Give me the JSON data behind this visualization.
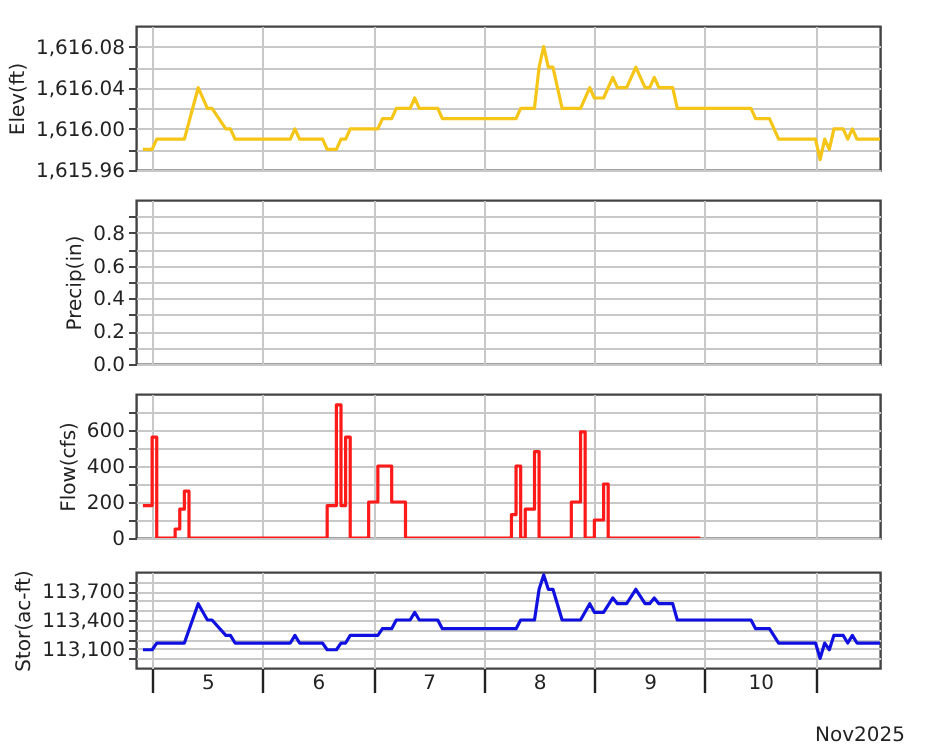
{
  "chart_data": [
    {
      "type": "line",
      "ylabel": "Elev(ft)",
      "grid": true,
      "tick_labels": "y",
      "x": [
        "2025-11-04T22:00",
        "2025-11-05T00:00",
        "2025-11-05T01:00",
        "2025-11-05T07:00",
        "2025-11-05T10:00",
        "2025-11-05T12:00",
        "2025-11-05T13:00",
        "2025-11-05T16:00",
        "2025-11-05T17:00",
        "2025-11-05T18:00",
        "2025-11-06T06:00",
        "2025-11-06T07:00",
        "2025-11-06T08:00",
        "2025-11-06T13:00",
        "2025-11-06T14:00",
        "2025-11-06T16:00",
        "2025-11-06T17:00",
        "2025-11-06T18:00",
        "2025-11-06T19:00",
        "2025-11-07T01:00",
        "2025-11-07T02:00",
        "2025-11-07T04:00",
        "2025-11-07T05:00",
        "2025-11-07T08:00",
        "2025-11-07T09:00",
        "2025-11-07T10:00",
        "2025-11-07T14:00",
        "2025-11-07T15:00",
        "2025-11-08T07:00",
        "2025-11-08T08:00",
        "2025-11-08T11:00",
        "2025-11-08T12:00",
        "2025-11-08T13:00",
        "2025-11-08T14:00",
        "2025-11-08T15:00",
        "2025-11-08T17:00",
        "2025-11-08T21:00",
        "2025-11-08T23:00",
        "2025-11-09T00:00",
        "2025-11-09T02:00",
        "2025-11-09T04:00",
        "2025-11-09T05:00",
        "2025-11-09T07:00",
        "2025-11-09T09:00",
        "2025-11-09T11:00",
        "2025-11-09T12:00",
        "2025-11-09T13:00",
        "2025-11-09T14:00",
        "2025-11-09T17:00",
        "2025-11-09T18:00",
        "2025-11-10T10:00",
        "2025-11-10T11:00",
        "2025-11-10T14:00",
        "2025-11-10T16:00",
        "2025-11-11T00:00",
        "2025-11-11T01:00",
        "2025-11-11T02:00",
        "2025-11-11T03:00",
        "2025-11-11T04:00",
        "2025-11-11T06:00",
        "2025-11-11T07:00",
        "2025-11-11T08:00",
        "2025-11-11T09:00",
        "2025-11-11T14:00"
      ],
      "series": [
        {
          "color": "#f5c518",
          "values": [
            1615.98,
            1615.98,
            1615.99,
            1615.99,
            1616.04,
            1616.02,
            1616.02,
            1616.0,
            1616.0,
            1615.99,
            1615.99,
            1616.0,
            1615.99,
            1615.99,
            1615.98,
            1615.98,
            1615.99,
            1615.99,
            1616.0,
            1616.0,
            1616.01,
            1616.01,
            1616.02,
            1616.02,
            1616.03,
            1616.02,
            1616.02,
            1616.01,
            1616.01,
            1616.02,
            1616.02,
            1616.06,
            1616.08,
            1616.06,
            1616.06,
            1616.02,
            1616.02,
            1616.04,
            1616.03,
            1616.03,
            1616.05,
            1616.04,
            1616.04,
            1616.06,
            1616.04,
            1616.04,
            1616.05,
            1616.04,
            1616.04,
            1616.02,
            1616.02,
            1616.01,
            1616.01,
            1615.99,
            1615.99,
            1615.97,
            1615.99,
            1615.98,
            1616.0,
            1616.0,
            1615.99,
            1616.0,
            1615.99,
            1615.99
          ]
        }
      ],
      "xlim": [
        "2025-11-04T20:30",
        "2025-11-11T14:00"
      ],
      "xticks": [
        {
          "value": "2025-11-05",
          "label": null
        },
        {
          "value": "2025-11-06",
          "label": null
        },
        {
          "value": "2025-11-07",
          "label": null
        },
        {
          "value": "2025-11-08",
          "label": null
        },
        {
          "value": "2025-11-09",
          "label": null
        },
        {
          "value": "2025-11-10",
          "label": null
        },
        {
          "value": "2025-11-11",
          "label": null
        }
      ],
      "ylim": [
        1615.96,
        1616.1
      ],
      "yticks": [
        {
          "value": 1615.96,
          "label": "1,615.96"
        },
        {
          "value": 1615.98,
          "label": null
        },
        {
          "value": 1616.0,
          "label": "1,616.00"
        },
        {
          "value": 1616.02,
          "label": null
        },
        {
          "value": 1616.04,
          "label": "1,616.04"
        },
        {
          "value": 1616.06,
          "label": null
        },
        {
          "value": 1616.08,
          "label": "1,616.08"
        }
      ]
    },
    {
      "type": "line",
      "ylabel": "Precip(in)",
      "grid": true,
      "tick_labels": "y",
      "xlim": [
        "2025-11-04T20:30",
        "2025-11-11T14:00"
      ],
      "xticks": [
        {
          "value": "2025-11-05",
          "label": null
        },
        {
          "value": "2025-11-06",
          "label": null
        },
        {
          "value": "2025-11-07",
          "label": null
        },
        {
          "value": "2025-11-08",
          "label": null
        },
        {
          "value": "2025-11-09",
          "label": null
        },
        {
          "value": "2025-11-10",
          "label": null
        },
        {
          "value": "2025-11-11",
          "label": null
        }
      ],
      "ylim": [
        0,
        1
      ],
      "yticks": [
        {
          "value": 0,
          "label": "0.0"
        },
        {
          "value": 0.1,
          "label": null
        },
        {
          "value": 0.2,
          "label": "0.2"
        },
        {
          "value": 0.3,
          "label": null
        },
        {
          "value": 0.4,
          "label": "0.4"
        },
        {
          "value": 0.5,
          "label": null
        },
        {
          "value": 0.6,
          "label": "0.6"
        },
        {
          "value": 0.7,
          "label": null
        },
        {
          "value": 0.8,
          "label": "0.8"
        },
        {
          "value": 0.9,
          "label": null
        }
      ]
    },
    {
      "type": "step",
      "ylabel": "Flow(cfs)",
      "grid": true,
      "tick_labels": "y",
      "x": [
        "2025-11-04T22:00",
        "2025-11-05T00:00",
        "2025-11-05T01:00",
        "2025-11-05T05:00",
        "2025-11-05T06:00",
        "2025-11-05T07:00",
        "2025-11-05T08:00",
        "2025-11-06T14:00",
        "2025-11-06T16:00",
        "2025-11-06T17:00",
        "2025-11-06T18:00",
        "2025-11-06T19:00",
        "2025-11-06T23:00",
        "2025-11-07T01:00",
        "2025-11-07T04:00",
        "2025-11-07T07:00",
        "2025-11-08T06:00",
        "2025-11-08T07:00",
        "2025-11-08T08:00",
        "2025-11-08T09:00",
        "2025-11-08T11:00",
        "2025-11-08T12:00",
        "2025-11-08T19:00",
        "2025-11-08T21:00",
        "2025-11-08T22:00",
        "2025-11-09T00:00",
        "2025-11-09T02:00",
        "2025-11-09T03:00",
        "2025-11-09T23:00"
      ],
      "series": [
        {
          "color": "#ff1a1a",
          "values": [
            180,
            560,
            0,
            50,
            160,
            260,
            0,
            180,
            740,
            180,
            560,
            0,
            200,
            400,
            200,
            0,
            130,
            400,
            0,
            160,
            480,
            0,
            200,
            590,
            0,
            100,
            300,
            0,
            0
          ]
        }
      ],
      "xlim": [
        "2025-11-04T20:30",
        "2025-11-11T14:00"
      ],
      "xticks": [
        {
          "value": "2025-11-05",
          "label": null
        },
        {
          "value": "2025-11-06",
          "label": null
        },
        {
          "value": "2025-11-07",
          "label": null
        },
        {
          "value": "2025-11-08",
          "label": null
        },
        {
          "value": "2025-11-09",
          "label": null
        },
        {
          "value": "2025-11-10",
          "label": null
        },
        {
          "value": "2025-11-11",
          "label": null
        }
      ],
      "ylim": [
        0,
        800
      ],
      "yticks": [
        {
          "value": 0,
          "label": "0"
        },
        {
          "value": 100,
          "label": null
        },
        {
          "value": 200,
          "label": "200"
        },
        {
          "value": 300,
          "label": null
        },
        {
          "value": 400,
          "label": "400"
        },
        {
          "value": 500,
          "label": null
        },
        {
          "value": 600,
          "label": "600"
        },
        {
          "value": 700,
          "label": null
        }
      ]
    },
    {
      "type": "line",
      "ylabel": "Stor(ac-ft)",
      "xlabel": "Nov2025",
      "grid": true,
      "x": [
        "2025-11-04T22:00",
        "2025-11-05T00:00",
        "2025-11-05T01:00",
        "2025-11-05T07:00",
        "2025-11-05T10:00",
        "2025-11-05T12:00",
        "2025-11-05T13:00",
        "2025-11-05T16:00",
        "2025-11-05T17:00",
        "2025-11-05T18:00",
        "2025-11-06T06:00",
        "2025-11-06T07:00",
        "2025-11-06T08:00",
        "2025-11-06T13:00",
        "2025-11-06T14:00",
        "2025-11-06T16:00",
        "2025-11-06T17:00",
        "2025-11-06T18:00",
        "2025-11-06T19:00",
        "2025-11-07T01:00",
        "2025-11-07T02:00",
        "2025-11-07T04:00",
        "2025-11-07T05:00",
        "2025-11-07T08:00",
        "2025-11-07T09:00",
        "2025-11-07T10:00",
        "2025-11-07T14:00",
        "2025-11-07T15:00",
        "2025-11-08T07:00",
        "2025-11-08T08:00",
        "2025-11-08T11:00",
        "2025-11-08T12:00",
        "2025-11-08T13:00",
        "2025-11-08T14:00",
        "2025-11-08T15:00",
        "2025-11-08T17:00",
        "2025-11-08T21:00",
        "2025-11-08T23:00",
        "2025-11-09T00:00",
        "2025-11-09T02:00",
        "2025-11-09T04:00",
        "2025-11-09T05:00",
        "2025-11-09T07:00",
        "2025-11-09T09:00",
        "2025-11-09T11:00",
        "2025-11-09T12:00",
        "2025-11-09T13:00",
        "2025-11-09T14:00",
        "2025-11-09T17:00",
        "2025-11-09T18:00",
        "2025-11-10T10:00",
        "2025-11-10T11:00",
        "2025-11-10T14:00",
        "2025-11-10T16:00",
        "2025-11-11T00:00",
        "2025-11-11T01:00",
        "2025-11-11T02:00",
        "2025-11-11T03:00",
        "2025-11-11T04:00",
        "2025-11-11T06:00",
        "2025-11-11T07:00",
        "2025-11-11T08:00",
        "2025-11-11T09:00",
        "2025-11-11T14:00"
      ],
      "series": [
        {
          "color": "#1010e0",
          "values": [
            113090,
            113090,
            113160,
            113160,
            113570,
            113400,
            113400,
            113240,
            113240,
            113160,
            113160,
            113240,
            113160,
            113160,
            113090,
            113090,
            113160,
            113160,
            113240,
            113240,
            113310,
            113310,
            113400,
            113400,
            113480,
            113400,
            113400,
            113310,
            113310,
            113400,
            113400,
            113720,
            113870,
            113720,
            113720,
            113400,
            113400,
            113570,
            113480,
            113480,
            113630,
            113570,
            113570,
            113720,
            113570,
            113570,
            113630,
            113570,
            113570,
            113400,
            113400,
            113310,
            113310,
            113160,
            113160,
            113000,
            113160,
            113090,
            113240,
            113240,
            113160,
            113240,
            113160,
            113160
          ]
        }
      ],
      "xlim": [
        "2025-11-04T20:30",
        "2025-11-11T14:00"
      ],
      "xticks": [
        {
          "value": "2025-11-05",
          "label": null
        },
        {
          "value": "2025-11-05T12:00",
          "label": "5"
        },
        {
          "value": "2025-11-06",
          "label": null
        },
        {
          "value": "2025-11-06T12:00",
          "label": "6"
        },
        {
          "value": "2025-11-07",
          "label": null
        },
        {
          "value": "2025-11-07T12:00",
          "label": "7"
        },
        {
          "value": "2025-11-08",
          "label": null
        },
        {
          "value": "2025-11-08T12:00",
          "label": "8"
        },
        {
          "value": "2025-11-09",
          "label": null
        },
        {
          "value": "2025-11-09T12:00",
          "label": "9"
        },
        {
          "value": "2025-11-10",
          "label": null
        },
        {
          "value": "2025-11-10T12:00",
          "label": "10"
        },
        {
          "value": "2025-11-11",
          "label": null
        }
      ],
      "ylim": [
        112900,
        113900
      ],
      "yticks": [
        {
          "value": 113000,
          "label": null
        },
        {
          "value": 113100,
          "label": "113,100"
        },
        {
          "value": 113200,
          "label": null
        },
        {
          "value": 113300,
          "label": null
        },
        {
          "value": 113400,
          "label": "113,400"
        },
        {
          "value": 113500,
          "label": null
        },
        {
          "value": 113600,
          "label": null
        },
        {
          "value": 113700,
          "label": "113,700"
        },
        {
          "value": 113800,
          "label": null
        }
      ]
    }
  ]
}
